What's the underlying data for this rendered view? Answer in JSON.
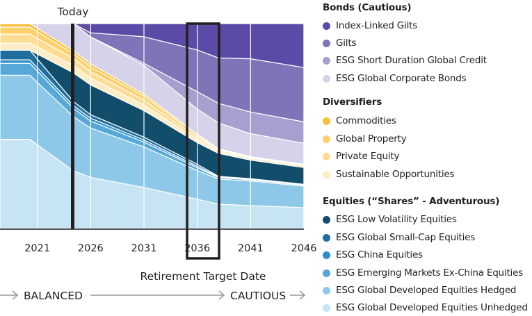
{
  "chart_data": {
    "type": "area",
    "stacked": true,
    "title": "",
    "xlabel": "Retirement Target Date",
    "ylabel": "",
    "x": [
      2017.5,
      2020.3,
      2024.4,
      2026,
      2031,
      2036,
      2038,
      2041,
      2046
    ],
    "xlim": [
      2017.5,
      2046
    ],
    "ylim": [
      0,
      100
    ],
    "xticks": [
      "2021",
      "2026",
      "2031",
      "2036",
      "2041",
      "2046"
    ],
    "xtick_values": [
      2021,
      2026,
      2031,
      2036,
      2041,
      2046
    ],
    "grid": "vertical",
    "annotations": {
      "today_label": "Today",
      "today_year": 2024.4,
      "highlight_year": "2036",
      "stage_left": "BALANCED",
      "stage_right": "CAUTIOUS"
    },
    "series": [
      {
        "name": "ESG Global Developed Equities Unhedged",
        "group": "equities",
        "color": "#c6e4f3",
        "values": [
          43.7,
          43.7,
          28.5,
          25.4,
          20.3,
          14.6,
          12.2,
          11.5,
          10.5
        ]
      },
      {
        "name": "ESG Global Developed Equities Hedged",
        "group": "equities",
        "color": "#8dc8e8",
        "values": [
          31.2,
          31.2,
          26.5,
          24.1,
          19.7,
          13.9,
          12.2,
          11.9,
          10.5
        ]
      },
      {
        "name": "ESG Emerging Markets Ex-China Equities",
        "group": "equities",
        "color": "#56a8d8",
        "values": [
          5.8,
          5.8,
          4.0,
          3.4,
          2.4,
          1.4,
          0.7,
          0.6,
          0.5
        ]
      },
      {
        "name": "ESG China Equities",
        "group": "equities",
        "color": "#2f8fcb",
        "values": [
          1.7,
          1.7,
          1.4,
          1.4,
          1.0,
          0.7,
          0.3,
          0.3,
          0.2
        ]
      },
      {
        "name": "ESG Global Small-Cap Equities",
        "group": "equities",
        "color": "#1f6e9c",
        "values": [
          4.7,
          4.7,
          2.0,
          1.7,
          1.4,
          1.0,
          0.3,
          0.3,
          0.2
        ]
      },
      {
        "name": "ESG Low Volatility Equities",
        "group": "equities",
        "color": "#134d6c",
        "values": [
          0,
          0,
          14.0,
          14.6,
          12.9,
          10.5,
          11.2,
          9.0,
          8.2
        ]
      },
      {
        "name": "Sustainable Opportunities",
        "group": "diversifiers",
        "color": "#fdecc4",
        "values": [
          3.4,
          3.4,
          3.7,
          3.4,
          2.7,
          1.4,
          1.0,
          1.0,
          1.0
        ]
      },
      {
        "name": "Private Equity",
        "group": "diversifiers",
        "color": "#fedc94",
        "values": [
          4.4,
          4.4,
          3.4,
          3.1,
          2.4,
          1.0,
          0.7,
          0.3,
          0.2
        ]
      },
      {
        "name": "Global Property",
        "group": "diversifiers",
        "color": "#fdd06a",
        "values": [
          3.4,
          3.4,
          2.4,
          2.4,
          2.0,
          1.0,
          0.3,
          0.2,
          0.2
        ]
      },
      {
        "name": "Commodities",
        "group": "diversifiers",
        "color": "#f9bf3b",
        "values": [
          1.7,
          1.7,
          1.4,
          1.4,
          1.0,
          0.7,
          0.3,
          0.2,
          0.2
        ]
      },
      {
        "name": "ESG Global Corporate Bonds",
        "group": "bonds",
        "color": "#d5d2e9",
        "values": [
          0,
          0,
          13.2,
          13.2,
          13.9,
          12.2,
          12.5,
          11.2,
          10.2
        ]
      },
      {
        "name": "ESG Short Duration Global Credit",
        "group": "bonds",
        "color": "#a6a0d0",
        "values": [
          0,
          0,
          0,
          0,
          1.0,
          8.5,
          9.5,
          10.5,
          10.5
        ]
      },
      {
        "name": "Gilts",
        "group": "bonds",
        "color": "#7e75b8",
        "values": [
          0,
          0,
          0.0,
          2.0,
          12.9,
          20.3,
          22.1,
          25.9,
          26.5
        ]
      },
      {
        "name": "Index-Linked Gilts",
        "group": "bonds",
        "color": "#5b4aa6",
        "values": [
          0,
          0,
          0.0,
          4.5,
          6.4,
          12.8,
          16.7,
          17.1,
          21.4
        ]
      }
    ]
  },
  "legend": {
    "groups": [
      {
        "title": "Bonds (Cautious)",
        "items": [
          {
            "label": "Index-Linked Gilts",
            "color": "#5b4aa6"
          },
          {
            "label": "Gilts",
            "color": "#7e75b8"
          },
          {
            "label": "ESG Short Duration Global Credit",
            "color": "#a6a0d0"
          },
          {
            "label": "ESG Global Corporate Bonds",
            "color": "#d5d2e9"
          }
        ]
      },
      {
        "title": "Diversifiers",
        "items": [
          {
            "label": "Commodities",
            "color": "#f9bf3b"
          },
          {
            "label": "Global Property",
            "color": "#fdd06a"
          },
          {
            "label": "Private Equity",
            "color": "#fedc94"
          },
          {
            "label": "Sustainable Opportunities",
            "color": "#fdecc4"
          }
        ]
      },
      {
        "title": "Equities (“Shares” - Adventurous)",
        "items": [
          {
            "label": "ESG Low Volatility Equities",
            "color": "#134d6c"
          },
          {
            "label": "ESG Global Small-Cap Equities",
            "color": "#1f6e9c"
          },
          {
            "label": "ESG China Equities",
            "color": "#2f8fcb"
          },
          {
            "label": "ESG Emerging Markets Ex-China Equities",
            "color": "#56a8d8"
          },
          {
            "label": "ESG Global Developed Equities Hedged",
            "color": "#8dc8e8"
          },
          {
            "label": "ESG Global Developed Equities Unhedged",
            "color": "#c6e4f3"
          }
        ]
      }
    ]
  }
}
